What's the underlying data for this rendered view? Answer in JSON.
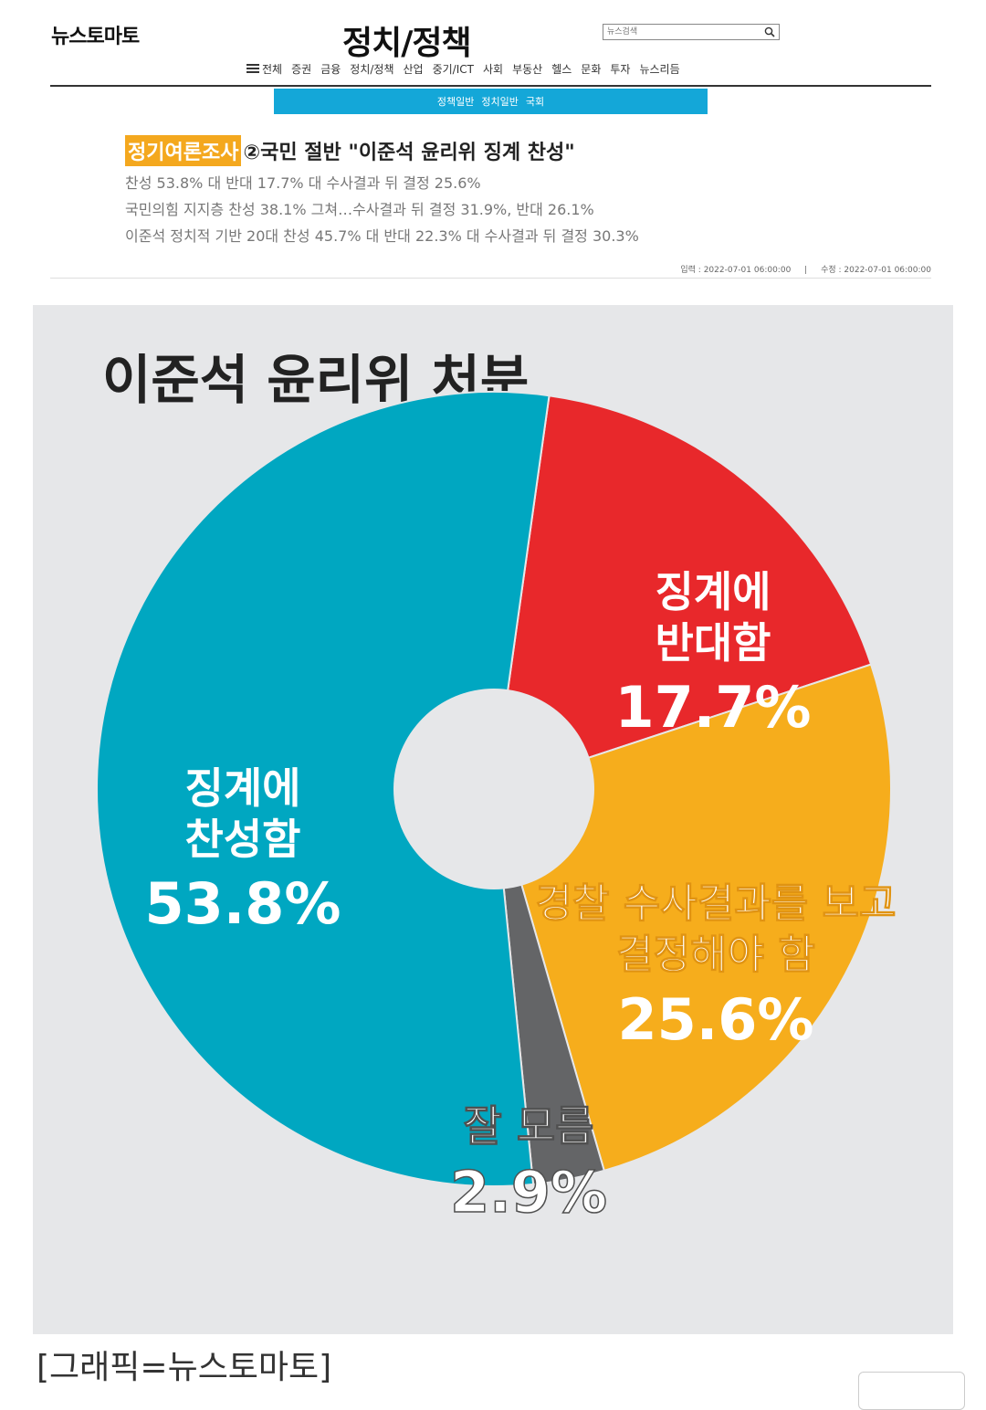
{
  "header": {
    "logo": "뉴스토마토",
    "section_title": "정치/정책",
    "search_placeholder": "뉴스검색",
    "nav_items": [
      "전체",
      "증권",
      "금융",
      "정치/정책",
      "산업",
      "중기/ICT",
      "사회",
      "부동산",
      "헬스",
      "문화",
      "투자",
      "뉴스리듬"
    ],
    "subnav_items": [
      "정책일반",
      "정치일반",
      "국회"
    ]
  },
  "article": {
    "tag": "정기여론조사",
    "headline": "②국민 절반 \"이준석 윤리위 징계 찬성\"",
    "subheads": [
      "찬성 53.8% 대 반대 17.7% 대 수사결과 뒤 결정 25.6%",
      "국민의힘 지지층 찬성 38.1% 그쳐…수사결과 뒤 결정 31.9%, 반대 26.1%",
      "이준석 정치적 기반 20대 찬성 45.7% 대 반대 22.3% 대 수사결과 뒤 결정 30.3%"
    ],
    "published": "입력 : 2022-07-01 06:00:00",
    "updated": "수정 : 2022-07-01 06:00:00"
  },
  "chart_data": {
    "type": "pie",
    "title": "이준석 윤리위 처분",
    "slices": [
      {
        "label_lines": [
          "징계에",
          "반대함"
        ],
        "value": 17.7,
        "value_label": "17.7%",
        "color": "#e8282b"
      },
      {
        "label_lines": [
          "경찰 수사결과를 보고",
          "결정해야 함"
        ],
        "value": 25.6,
        "value_label": "25.6%",
        "color": "#f6ad1c"
      },
      {
        "label_lines": [
          "잘 모름"
        ],
        "value": 2.9,
        "value_label": "2.9%",
        "color": "#646567"
      },
      {
        "label_lines": [
          "징계에",
          "찬성함"
        ],
        "value": 53.8,
        "value_label": "53.8%",
        "color": "#00a7c1"
      }
    ],
    "start_angle_deg": 8,
    "donut": true
  },
  "caption": "[그래픽=뉴스토마토]"
}
